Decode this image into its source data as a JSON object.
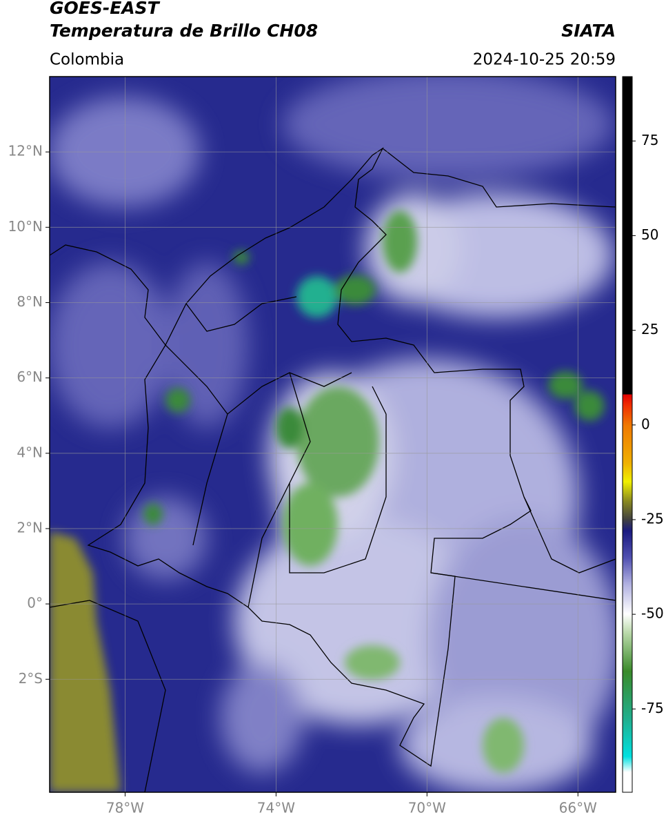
{
  "header": {
    "title": "GOES-EAST",
    "subtitle": "Temperatura de Brillo CH08",
    "region": "Colombia",
    "source": "SIATA",
    "datetime": "2024-10-25 20:59"
  },
  "map": {
    "xlim": [
      -80,
      -65
    ],
    "ylim": [
      -5,
      14
    ],
    "xticks": [
      {
        "value": -78,
        "label": "78°W"
      },
      {
        "value": -74,
        "label": "74°W"
      },
      {
        "value": -70,
        "label": "70°W"
      },
      {
        "value": -66,
        "label": "66°W"
      }
    ],
    "yticks": [
      {
        "value": 12,
        "label": "12°N"
      },
      {
        "value": 10,
        "label": "10°N"
      },
      {
        "value": 8,
        "label": "8°N"
      },
      {
        "value": 6,
        "label": "6°N"
      },
      {
        "value": 4,
        "label": "4°N"
      },
      {
        "value": 2,
        "label": "2°N"
      },
      {
        "value": 0,
        "label": "0°"
      },
      {
        "value": -2,
        "label": "2°S"
      }
    ],
    "grid": true
  },
  "colorbar": {
    "lim": [
      -97,
      92
    ],
    "ticks": [
      75,
      50,
      25,
      0,
      -25,
      -50,
      -75
    ]
  }
}
